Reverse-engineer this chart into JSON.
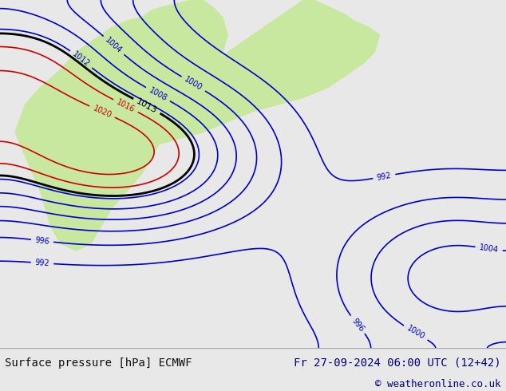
{
  "title_left": "Surface pressure [hPa] ECMWF",
  "title_right": "Fr 27-09-2024 06:00 UTC (12+42)",
  "copyright": "© weatheronline.co.uk",
  "bg_color": "#e8e8e8",
  "map_bg": "#aaddff",
  "land_color": "#c8e8a0",
  "text_color_black": "#000000",
  "text_color_blue": "#000080",
  "text_color_red": "#cc0000",
  "footer_bg": "#f0f0f0",
  "figsize": [
    6.34,
    4.9
  ],
  "dpi": 100
}
